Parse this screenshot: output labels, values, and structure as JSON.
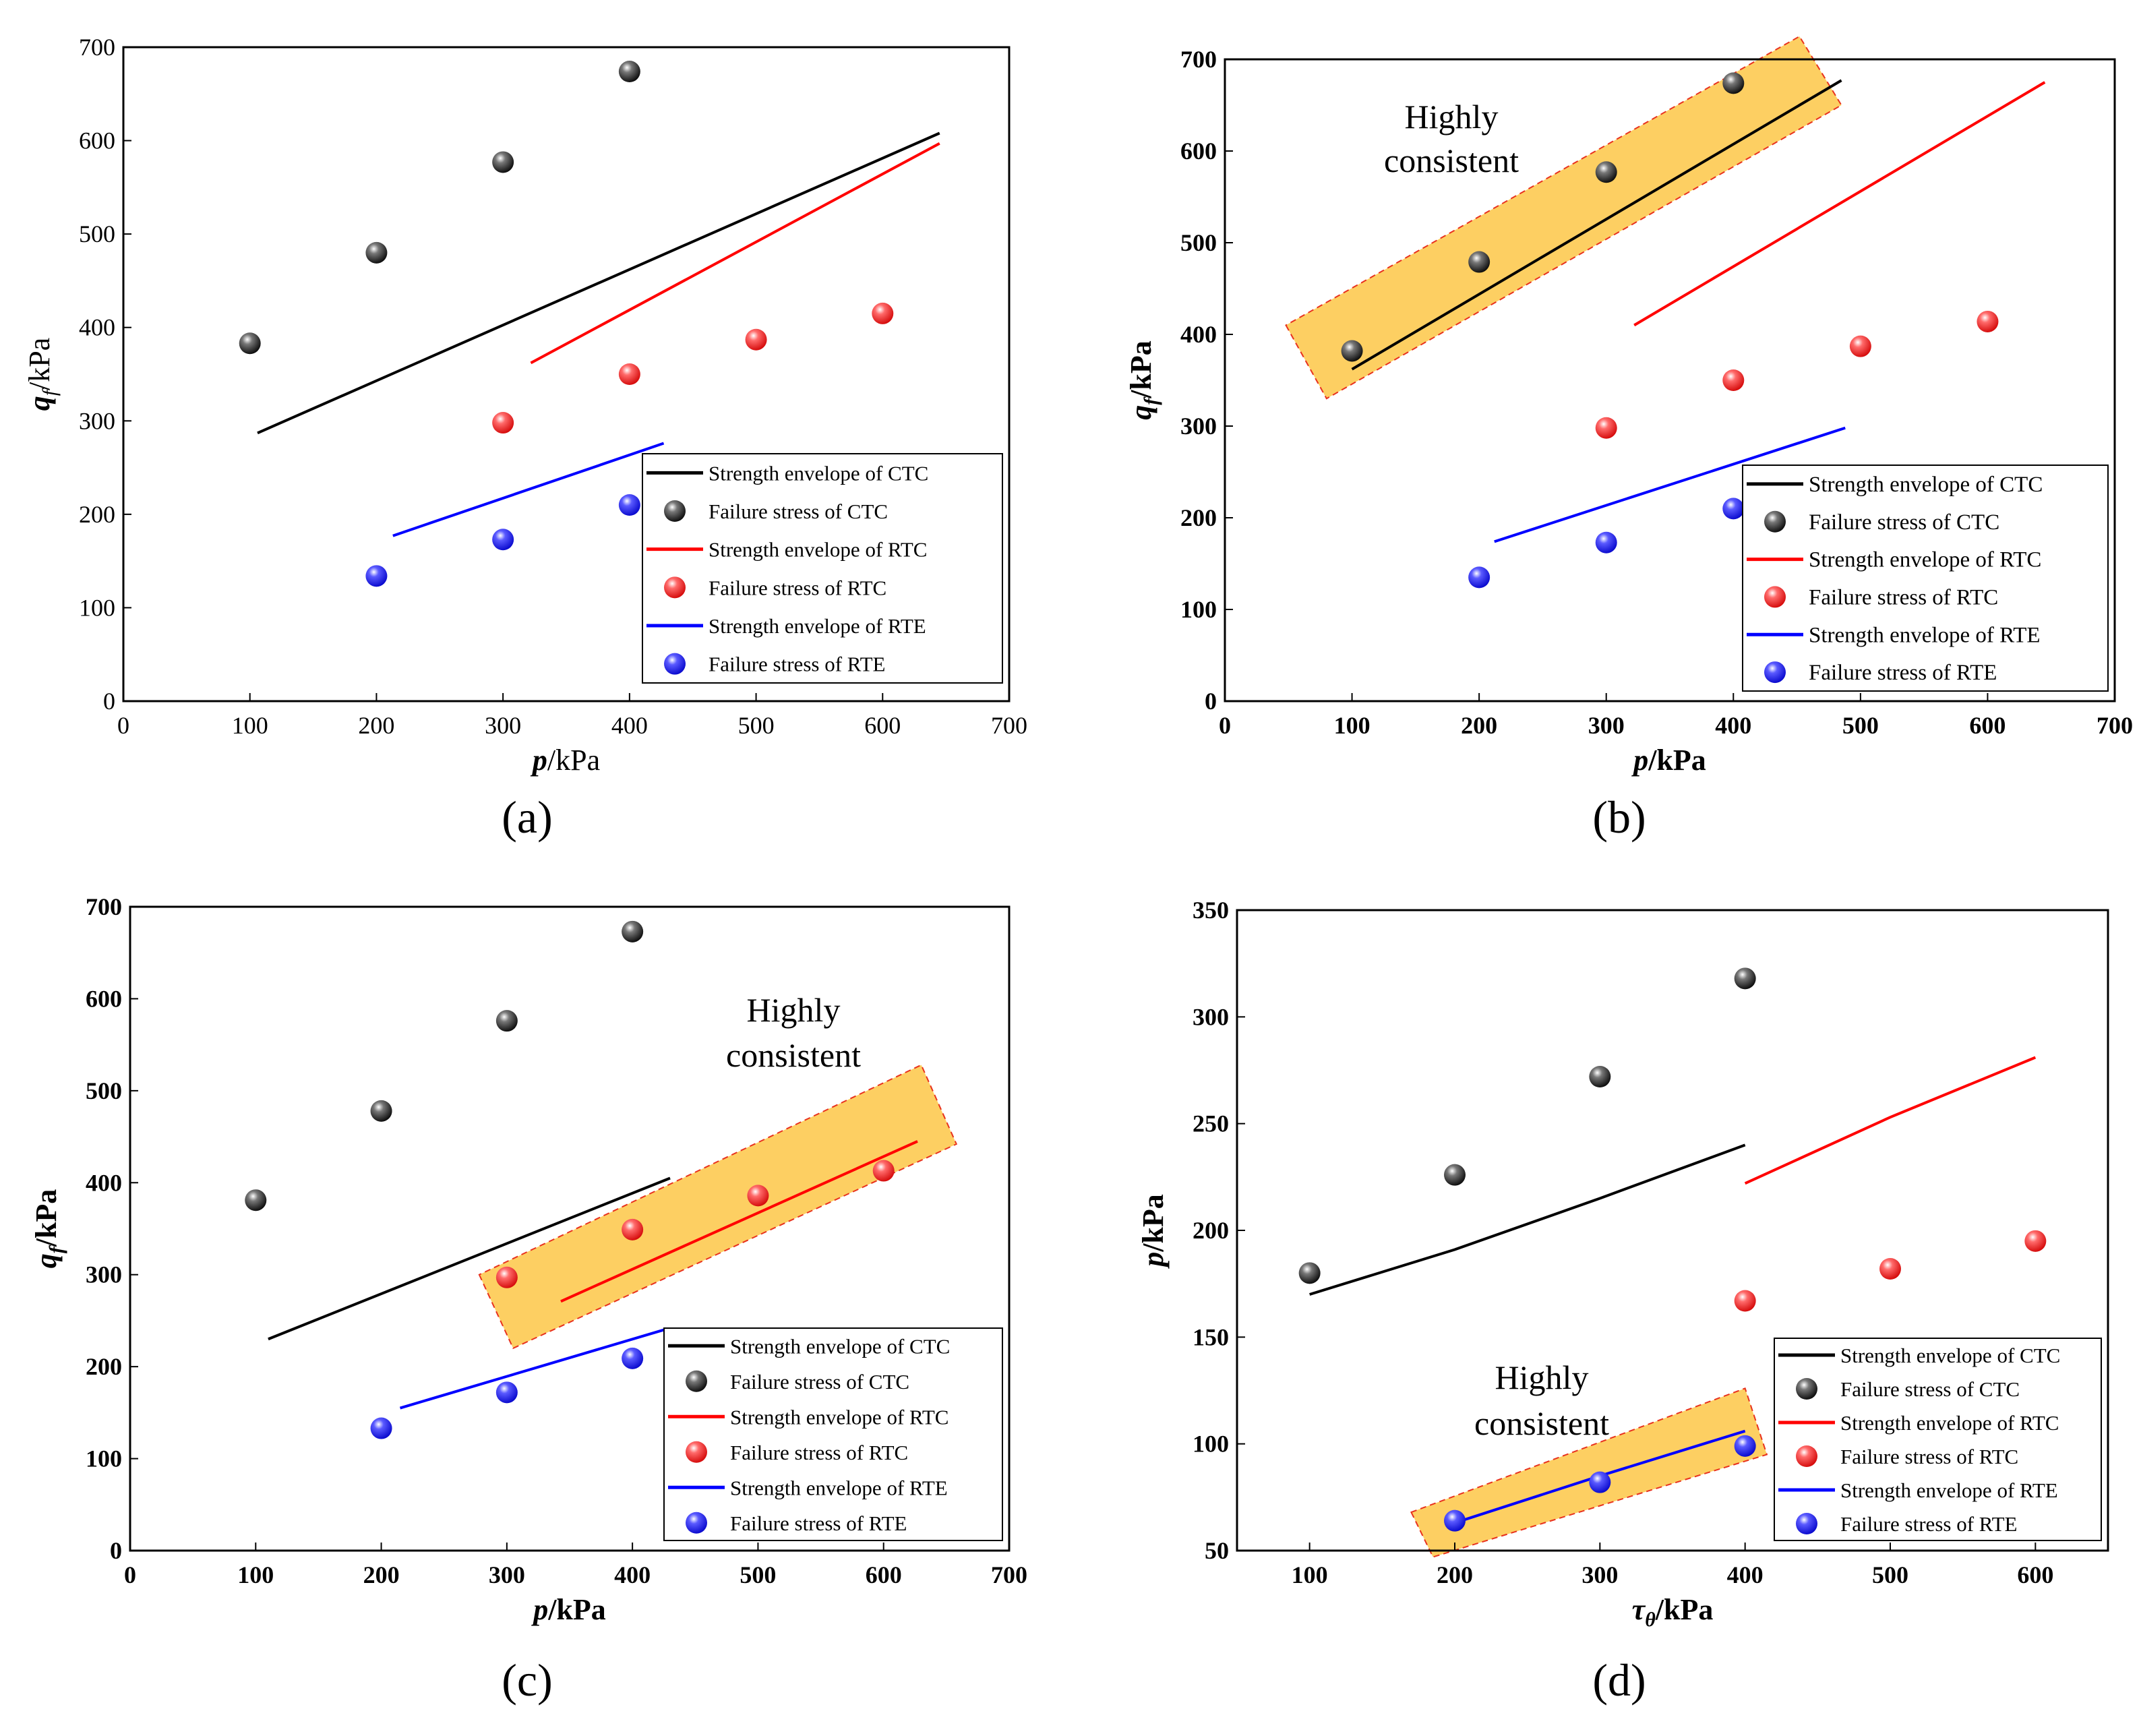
{
  "colors": {
    "ctc": "#000000",
    "rtc": "#ff0000",
    "rte": "#0000ff",
    "highlight_fill": "#fdcf62",
    "highlight_border": "#e8321e"
  },
  "chart_data": [
    {
      "panel": "(a)",
      "type": "scatter",
      "xlabel": {
        "italic": "p",
        "rest": "/kPa"
      },
      "ylabel": {
        "italic": "q",
        "sub": "f",
        "rest": "/kPa"
      },
      "xlim": [
        0,
        700
      ],
      "ylim": [
        0,
        700
      ],
      "xticks": [
        0,
        100,
        200,
        300,
        400,
        500,
        600,
        700
      ],
      "yticks": [
        0,
        100,
        200,
        300,
        400,
        500,
        600,
        700
      ],
      "series": [
        {
          "name": "Strength envelope of CTC",
          "kind": "line",
          "color": "#000000",
          "points": [
            [
              106,
              287
            ],
            [
              645,
              608
            ]
          ]
        },
        {
          "name": "Failure stress of CTC",
          "kind": "points",
          "color": "#000000",
          "points": [
            [
              100,
              383
            ],
            [
              200,
              480
            ],
            [
              300,
              577
            ],
            [
              400,
              674
            ]
          ]
        },
        {
          "name": "Strength envelope of RTC",
          "kind": "line",
          "color": "#ff0000",
          "points": [
            [
              322,
              362
            ],
            [
              645,
              597
            ]
          ]
        },
        {
          "name": "Failure stress of RTC",
          "kind": "points",
          "color": "#ff0000",
          "points": [
            [
              300,
              298
            ],
            [
              400,
              350
            ],
            [
              500,
              387
            ],
            [
              600,
              415
            ]
          ]
        },
        {
          "name": "Strength envelope of RTE",
          "kind": "line",
          "color": "#0000ff",
          "points": [
            [
              213,
              177
            ],
            [
              427,
              276
            ]
          ]
        },
        {
          "name": "Failure stress of RTE",
          "kind": "points",
          "color": "#0000ff",
          "points": [
            [
              200,
              134
            ],
            [
              300,
              173
            ],
            [
              400,
              210
            ]
          ]
        }
      ]
    },
    {
      "panel": "(b)",
      "type": "scatter",
      "xlabel": {
        "italic": "p",
        "rest": "/kPa"
      },
      "ylabel": {
        "italic": "q",
        "sub": "f",
        "rest": "/kPa"
      },
      "xlim": [
        0,
        700
      ],
      "ylim": [
        0,
        700
      ],
      "xticks": [
        0,
        100,
        200,
        300,
        400,
        500,
        600,
        700
      ],
      "yticks": [
        0,
        100,
        200,
        300,
        400,
        500,
        600,
        700
      ],
      "annotation": {
        "line1": "Highly",
        "line2": "consistent"
      },
      "highlight": [
        [
          48,
          410
        ],
        [
          80,
          330
        ],
        [
          485,
          650
        ],
        [
          452,
          725
        ]
      ],
      "series": [
        {
          "name": "Strength envelope of CTC",
          "kind": "line",
          "color": "#000000",
          "points": [
            [
              100,
              362
            ],
            [
              485,
              677
            ]
          ]
        },
        {
          "name": "Failure stress of CTC",
          "kind": "points",
          "color": "#000000",
          "points": [
            [
              100,
              382
            ],
            [
              200,
              479
            ],
            [
              300,
              577
            ],
            [
              400,
              674
            ]
          ]
        },
        {
          "name": "Strength envelope of RTC",
          "kind": "line",
          "color": "#ff0000",
          "points": [
            [
              322,
              410
            ],
            [
              645,
              675
            ]
          ]
        },
        {
          "name": "Failure stress of RTC",
          "kind": "points",
          "color": "#ff0000",
          "points": [
            [
              300,
              298
            ],
            [
              400,
              350
            ],
            [
              500,
              387
            ],
            [
              600,
              414
            ]
          ]
        },
        {
          "name": "Strength envelope of RTE",
          "kind": "line",
          "color": "#0000ff",
          "points": [
            [
              212,
              174
            ],
            [
              488,
              298
            ]
          ]
        },
        {
          "name": "Failure stress of RTE",
          "kind": "points",
          "color": "#0000ff",
          "points": [
            [
              200,
              135
            ],
            [
              300,
              173
            ],
            [
              400,
              210
            ]
          ]
        }
      ]
    },
    {
      "panel": "(c)",
      "type": "scatter",
      "xlabel": {
        "italic": "p",
        "rest": "/kPa"
      },
      "ylabel": {
        "italic": "q",
        "sub": "f",
        "rest": "/kPa"
      },
      "xlim": [
        0,
        700
      ],
      "ylim": [
        0,
        700
      ],
      "xticks": [
        0,
        100,
        200,
        300,
        400,
        500,
        600,
        700
      ],
      "yticks": [
        0,
        100,
        200,
        300,
        400,
        500,
        600,
        700
      ],
      "annotation": {
        "line1": "Highly",
        "line2": "consistent"
      },
      "highlight": [
        [
          278,
          300
        ],
        [
          305,
          220
        ],
        [
          658,
          442
        ],
        [
          630,
          528
        ]
      ],
      "series": [
        {
          "name": "Strength envelope of CTC",
          "kind": "line",
          "color": "#000000",
          "points": [
            [
              110,
              230
            ],
            [
              430,
              405
            ]
          ]
        },
        {
          "name": "Failure stress of CTC",
          "kind": "points",
          "color": "#000000",
          "points": [
            [
              100,
              381
            ],
            [
              200,
              478
            ],
            [
              300,
              576
            ],
            [
              400,
              673
            ]
          ]
        },
        {
          "name": "Strength envelope of RTC",
          "kind": "line",
          "color": "#ff0000",
          "points": [
            [
              343,
              271
            ],
            [
              627,
              445
            ]
          ]
        },
        {
          "name": "Failure stress of RTC",
          "kind": "points",
          "color": "#ff0000",
          "points": [
            [
              300,
              297
            ],
            [
              400,
              349
            ],
            [
              500,
              386
            ],
            [
              600,
              413
            ]
          ]
        },
        {
          "name": "Strength envelope of RTE",
          "kind": "line",
          "color": "#0000ff",
          "points": [
            [
              215,
              155
            ],
            [
              425,
              240
            ]
          ]
        },
        {
          "name": "Failure stress of RTE",
          "kind": "points",
          "color": "#0000ff",
          "points": [
            [
              200,
              133
            ],
            [
              300,
              172
            ],
            [
              400,
              209
            ]
          ]
        }
      ]
    },
    {
      "panel": "(d)",
      "type": "scatter",
      "xlabel": {
        "italic": "τ",
        "sub": "θ",
        "rest": "/kPa"
      },
      "ylabel": {
        "italic": "p",
        "rest": "/kPa"
      },
      "xlim": [
        50,
        650
      ],
      "ylim": [
        50,
        350
      ],
      "xticks": [
        100,
        200,
        300,
        400,
        500,
        600
      ],
      "yticks": [
        50,
        100,
        150,
        200,
        250,
        300,
        350
      ],
      "annotation": {
        "line1": "Highly",
        "line2": "consistent"
      },
      "highlight": [
        [
          170,
          68
        ],
        [
          185,
          47
        ],
        [
          415,
          95
        ],
        [
          400,
          126
        ]
      ],
      "series": [
        {
          "name": "Strength envelope of CTC",
          "kind": "line",
          "color": "#000000",
          "points": [
            [
              100,
              170
            ],
            [
              200,
              191
            ],
            [
              300,
              215
            ],
            [
              400,
              240
            ]
          ]
        },
        {
          "name": "Failure stress of CTC",
          "kind": "points",
          "color": "#000000",
          "points": [
            [
              100,
              180
            ],
            [
              200,
              226
            ],
            [
              300,
              272
            ],
            [
              400,
              318
            ]
          ]
        },
        {
          "name": "Strength envelope of RTC",
          "kind": "line",
          "color": "#ff0000",
          "points": [
            [
              400,
              222
            ],
            [
              500,
              253
            ],
            [
              600,
              281
            ]
          ]
        },
        {
          "name": "Failure stress of RTC",
          "kind": "points",
          "color": "#ff0000",
          "points": [
            [
              400,
              167
            ],
            [
              500,
              182
            ],
            [
              600,
              195
            ]
          ]
        },
        {
          "name": "Strength envelope of RTE",
          "kind": "line",
          "color": "#0000ff",
          "points": [
            [
              200,
              63
            ],
            [
              300,
              85
            ],
            [
              400,
              106
            ]
          ]
        },
        {
          "name": "Failure stress of RTE",
          "kind": "points",
          "color": "#0000ff",
          "points": [
            [
              200,
              64
            ],
            [
              300,
              82
            ],
            [
              400,
              99
            ]
          ]
        }
      ]
    }
  ]
}
